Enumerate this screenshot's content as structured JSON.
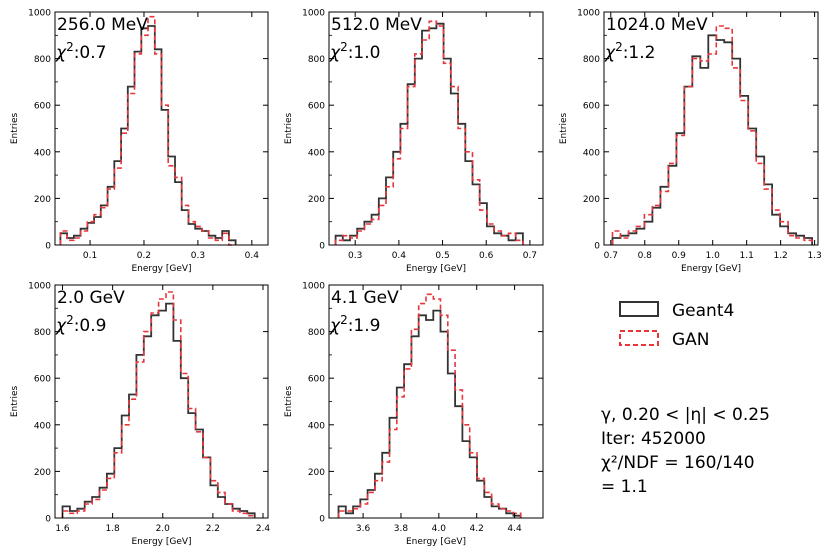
{
  "chart_data": [
    {
      "type": "histogram",
      "title": "256.0 MeV",
      "chi2_label": "χ",
      "chi2_value": ":0.7",
      "xlabel": "Energy [GeV]",
      "ylabel": "Entries",
      "xlim": [
        0.035,
        0.43
      ],
      "ylim": [
        0,
        1000
      ],
      "xticks": [
        "0.1",
        "0.2",
        "0.3",
        "0.4"
      ],
      "xtick_values": [
        0.1,
        0.2,
        0.3,
        0.4
      ],
      "yticks": [
        0,
        200,
        400,
        600,
        800,
        1000
      ],
      "bin_start": 0.045,
      "bin_width": 0.0125,
      "series": [
        {
          "name": "Geant4",
          "values": [
            50,
            30,
            40,
            70,
            95,
            120,
            170,
            250,
            360,
            500,
            680,
            830,
            930,
            940,
            840,
            580,
            380,
            270,
            150,
            90,
            70,
            60,
            40,
            30,
            60,
            20
          ]
        },
        {
          "name": "GAN",
          "values": [
            60,
            20,
            30,
            60,
            100,
            130,
            160,
            240,
            330,
            480,
            650,
            820,
            900,
            980,
            820,
            600,
            340,
            290,
            170,
            100,
            80,
            60,
            30,
            20,
            50,
            0
          ]
        }
      ]
    },
    {
      "type": "histogram",
      "title": "512.0 MeV",
      "chi2_label": "χ",
      "chi2_value": ":1.0",
      "xlabel": "Energy [GeV]",
      "ylabel": "Entries",
      "xlim": [
        0.24,
        0.73
      ],
      "ylim": [
        0,
        1000
      ],
      "xticks": [
        "0.3",
        "0.4",
        "0.5",
        "0.6",
        "0.7"
      ],
      "xtick_values": [
        0.3,
        0.4,
        0.5,
        0.6,
        0.7
      ],
      "yticks": [
        0,
        200,
        400,
        600,
        800,
        1000
      ],
      "bin_start": 0.255,
      "bin_width": 0.0165,
      "series": [
        {
          "name": "Geant4",
          "values": [
            40,
            20,
            40,
            70,
            100,
            130,
            200,
            290,
            400,
            520,
            690,
            800,
            920,
            930,
            950,
            800,
            650,
            520,
            360,
            260,
            180,
            80,
            50,
            40,
            20,
            50
          ]
        },
        {
          "name": "GAN",
          "values": [
            20,
            40,
            30,
            60,
            90,
            110,
            170,
            250,
            370,
            500,
            680,
            820,
            880,
            960,
            940,
            780,
            680,
            500,
            400,
            280,
            150,
            90,
            60,
            40,
            50,
            20
          ]
        }
      ]
    },
    {
      "type": "histogram",
      "title": "1024.0 MeV",
      "chi2_label": "χ",
      "chi2_value": ":1.2",
      "xlabel": "Energy [GeV]",
      "ylabel": "Entries",
      "xlim": [
        0.68,
        1.31
      ],
      "ylim": [
        0,
        1000
      ],
      "xticks": [
        "0.7",
        "0.8",
        "0.9",
        "1.0",
        "1.1",
        "1.2",
        "1.3"
      ],
      "xtick_values": [
        0.7,
        0.8,
        0.9,
        1.0,
        1.1,
        1.2,
        1.3
      ],
      "yticks": [
        0,
        200,
        400,
        600,
        800,
        1000
      ],
      "bin_start": 0.705,
      "bin_width": 0.0235,
      "series": [
        {
          "name": "Geant4",
          "values": [
            30,
            40,
            50,
            70,
            100,
            160,
            250,
            340,
            480,
            680,
            810,
            760,
            900,
            880,
            870,
            800,
            640,
            500,
            380,
            260,
            130,
            80,
            50,
            40,
            30
          ]
        },
        {
          "name": "GAN",
          "values": [
            60,
            30,
            60,
            80,
            130,
            170,
            230,
            350,
            470,
            680,
            800,
            790,
            820,
            940,
            930,
            760,
            620,
            490,
            350,
            240,
            150,
            100,
            40,
            30,
            20
          ]
        }
      ]
    },
    {
      "type": "histogram",
      "title": "2.0 GeV",
      "chi2_label": "χ",
      "chi2_value": ":0.9",
      "xlabel": "Energy [GeV]",
      "ylabel": "Entries",
      "xlim": [
        1.57,
        2.42
      ],
      "ylim": [
        0,
        1000
      ],
      "xticks": [
        "1.6",
        "1.8",
        "2.0",
        "2.2",
        "2.4"
      ],
      "xtick_values": [
        1.6,
        1.8,
        2.0,
        2.2,
        2.4
      ],
      "yticks": [
        0,
        200,
        400,
        600,
        800,
        1000
      ],
      "bin_start": 1.6,
      "bin_width": 0.0295,
      "series": [
        {
          "name": "Geant4",
          "values": [
            50,
            30,
            40,
            70,
            90,
            130,
            190,
            300,
            440,
            530,
            700,
            780,
            870,
            890,
            920,
            760,
            600,
            450,
            380,
            260,
            140,
            90,
            60,
            40,
            30,
            20
          ]
        },
        {
          "name": "GAN",
          "values": [
            30,
            20,
            30,
            60,
            80,
            120,
            170,
            280,
            400,
            510,
            670,
            800,
            880,
            940,
            970,
            850,
            620,
            470,
            370,
            260,
            160,
            110,
            60,
            30,
            20,
            10
          ]
        }
      ]
    },
    {
      "type": "histogram",
      "title": "4.1 GeV",
      "chi2_label": "χ",
      "chi2_value": ":1.9",
      "xlabel": "Energy [GeV]",
      "ylabel": "Entries",
      "xlim": [
        3.42,
        4.55
      ],
      "ylim": [
        0,
        1000
      ],
      "xticks": [
        "3.6",
        "3.8",
        "4.0",
        "4.2",
        "4.4"
      ],
      "xtick_values": [
        3.6,
        3.8,
        4.0,
        4.2,
        4.4
      ],
      "yticks": [
        0,
        200,
        400,
        600,
        800,
        1000
      ],
      "bin_start": 3.47,
      "bin_width": 0.0385,
      "series": [
        {
          "name": "Geant4",
          "values": [
            50,
            20,
            50,
            80,
            120,
            190,
            280,
            430,
            560,
            660,
            780,
            870,
            850,
            890,
            800,
            620,
            480,
            330,
            260,
            160,
            90,
            50,
            40,
            20,
            10
          ]
        },
        {
          "name": "GAN",
          "values": [
            30,
            30,
            40,
            60,
            110,
            160,
            240,
            380,
            520,
            640,
            810,
            920,
            960,
            940,
            870,
            720,
            550,
            400,
            280,
            170,
            110,
            60,
            40,
            30,
            20
          ]
        }
      ]
    }
  ],
  "legend": {
    "items": [
      {
        "label": "Geant4",
        "color": "#333333",
        "style": "solid"
      },
      {
        "label": "GAN",
        "color": "#e8363c",
        "style": "dashed"
      }
    ]
  },
  "info": {
    "line1": "γ, 0.20 < |η| < 0.25",
    "line2": "Iter: 452000",
    "line3": "χ²/NDF = 160/140",
    "line4": "= 1.1"
  },
  "colors": {
    "geant4": "#333333",
    "gan": "#e8363c"
  }
}
